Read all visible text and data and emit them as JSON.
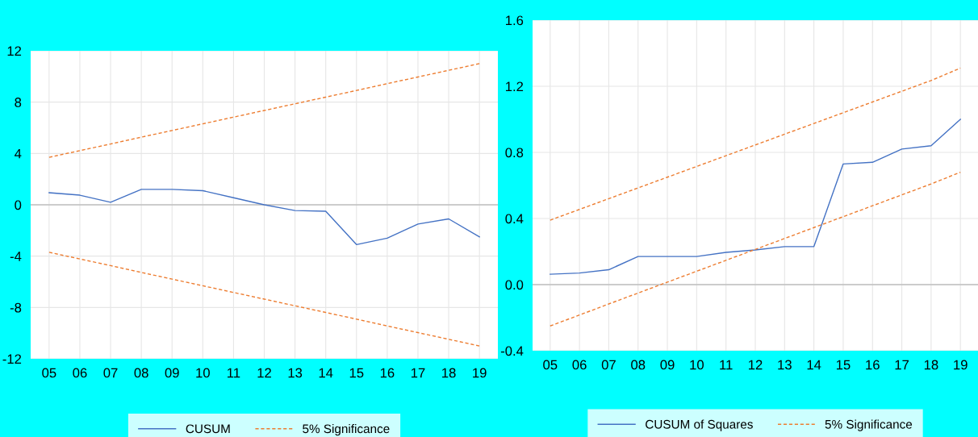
{
  "chart_data": [
    {
      "type": "line",
      "categories": [
        "05",
        "06",
        "07",
        "08",
        "09",
        "10",
        "11",
        "12",
        "13",
        "14",
        "15",
        "16",
        "17",
        "18",
        "19"
      ],
      "ylim": [
        -12,
        12
      ],
      "yticks": [
        -12,
        -8,
        -4,
        0,
        4,
        8,
        12
      ],
      "grid": true,
      "legend": "bottom",
      "marker": "none",
      "ref_lines": [
        {
          "axis": "y",
          "value": 0,
          "color": "#bfbfbf"
        }
      ],
      "series": [
        {
          "name": "CUSUM",
          "color": "#4472c4",
          "line_style": "solid",
          "values": [
            0.94,
            0.75,
            0.2,
            1.2,
            1.2,
            1.1,
            0.55,
            0,
            -0.45,
            -0.5,
            -3.1,
            -2.6,
            -1.5,
            -1.1,
            -2.5
          ]
        },
        {
          "name": "5% Significance",
          "color": "#ed7d31",
          "line_style": "dashed",
          "values": [
            3.7,
            4.22,
            4.74,
            5.27,
            5.79,
            6.31,
            6.83,
            7.35,
            7.87,
            8.39,
            8.91,
            9.44,
            9.96,
            10.48,
            11.0
          ]
        },
        {
          "color": "#ed7d31",
          "line_style": "dashed",
          "values": [
            -3.7,
            -4.22,
            -4.74,
            -5.27,
            -5.79,
            -6.31,
            -6.83,
            -7.35,
            -7.87,
            -8.39,
            -8.91,
            -9.44,
            -9.96,
            -10.48,
            -11.0
          ]
        }
      ]
    },
    {
      "type": "line",
      "categories": [
        "05",
        "06",
        "07",
        "08",
        "09",
        "10",
        "11",
        "12",
        "13",
        "14",
        "15",
        "16",
        "17",
        "18",
        "19"
      ],
      "ylim": [
        -0.4,
        1.6
      ],
      "yticks": [
        {
          "value": -0.4,
          "label": "-0.4"
        },
        {
          "value": 0,
          "label": "0.0"
        },
        0.4,
        0.8,
        1.2,
        1.6
      ],
      "grid": true,
      "legend": "bottom",
      "marker": "none",
      "ref_lines": [
        {
          "axis": "y",
          "value": 0,
          "color": "#bfbfbf"
        }
      ],
      "series": [
        {
          "name": "CUSUM of Squares",
          "color": "#4472c4",
          "line_style": "solid",
          "values": [
            0.063,
            0.07,
            0.09,
            0.17,
            0.17,
            0.17,
            0.195,
            0.21,
            0.23,
            0.23,
            0.73,
            0.74,
            0.82,
            0.84,
            1.0
          ]
        },
        {
          "name": "5% Significance",
          "color": "#ed7d31",
          "line_style": "dashed",
          "values": [
            0.39,
            0.455,
            0.52,
            0.585,
            0.65,
            0.715,
            0.78,
            0.845,
            0.91,
            0.975,
            1.04,
            1.105,
            1.17,
            1.235,
            1.31
          ]
        },
        {
          "color": "#ed7d31",
          "line_style": "dashed",
          "values": [
            -0.25,
            -0.184,
            -0.117,
            -0.051,
            0.015,
            0.081,
            0.147,
            0.213,
            0.279,
            0.345,
            0.411,
            0.477,
            0.543,
            0.609,
            0.68
          ]
        }
      ]
    }
  ]
}
